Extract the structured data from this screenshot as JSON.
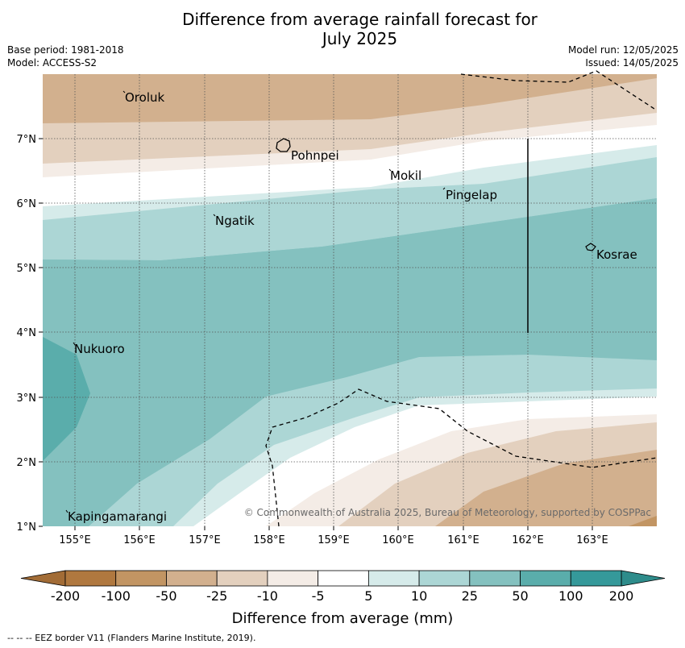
{
  "title": {
    "line1": "Difference from average rainfall forecast for",
    "line2": "July 2025"
  },
  "meta": {
    "base_period": "Base period: 1981-2018",
    "model": "Model: ACCESS-S2",
    "model_run": "Model run: 12/05/2025",
    "issued": "Issued: 14/05/2025"
  },
  "axes": {
    "lon_ticks": [
      "155°E",
      "156°E",
      "157°E",
      "158°E",
      "159°E",
      "160°E",
      "161°E",
      "162°E",
      "163°E"
    ],
    "lat_ticks": [
      "7°N",
      "6°N",
      "5°N",
      "4°N",
      "3°N",
      "2°N",
      "1°N"
    ]
  },
  "places": [
    {
      "name": "Oroluk"
    },
    {
      "name": "Pohnpei"
    },
    {
      "name": "Mokil"
    },
    {
      "name": "Pingelap"
    },
    {
      "name": "Ngatik"
    },
    {
      "name": "Kosrae"
    },
    {
      "name": "Nukuoro"
    },
    {
      "name": "Kapingamarangi"
    }
  ],
  "copyright": "© Commonwealth of Australia 2025, Bureau of Meteorology, supported by COSPPac",
  "colorbar": {
    "label": "Difference from average (mm)",
    "ticks": [
      "-200",
      "-100",
      "-50",
      "-25",
      "-10",
      "-5",
      "5",
      "10",
      "25",
      "50",
      "100",
      "200"
    ],
    "colors": [
      "#b0783f",
      "#c29563",
      "#d2b08e",
      "#e3d0be",
      "#f4ece6",
      "#ffffff",
      "#d6ebea",
      "#acd6d5",
      "#84c1bf",
      "#5aadab",
      "#35999a"
    ],
    "extend_low_color": "#a26c36",
    "extend_high_color": "#2e8c8b"
  },
  "footer": "--  --  -- EEZ border V11 (Flanders Marine Institute, 2019)."
}
